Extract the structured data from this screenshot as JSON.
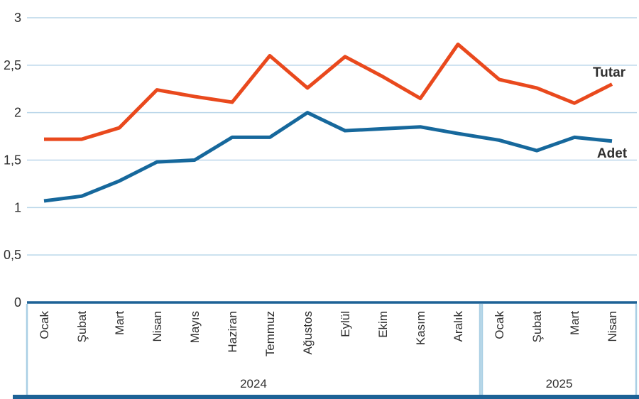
{
  "chart_data": {
    "type": "line",
    "title": "",
    "xlabel": "",
    "ylabel": "",
    "ylim": [
      0,
      3
    ],
    "grid": true,
    "legend_position": "inline-right-of-lines",
    "decimal_separator": ",",
    "categories": [
      "Ocak",
      "Şubat",
      "Mart",
      "Nisan",
      "Mayıs",
      "Haziran",
      "Temmuz",
      "Ağustos",
      "Eylül",
      "Ekim",
      "Kasım",
      "Aralık",
      "Ocak",
      "Şubat",
      "Mart",
      "Nisan"
    ],
    "x_groups": [
      {
        "label": "2024",
        "count": 12
      },
      {
        "label": "2025",
        "count": 4
      }
    ],
    "y_ticks": [
      {
        "value": 0,
        "label": "0"
      },
      {
        "value": 0.5,
        "label": "0,5"
      },
      {
        "value": 1,
        "label": "1"
      },
      {
        "value": 1.5,
        "label": "1,5"
      },
      {
        "value": 2,
        "label": "2"
      },
      {
        "value": 2.5,
        "label": "2,5"
      },
      {
        "value": 3,
        "label": "3"
      }
    ],
    "series": [
      {
        "name": "Tutar",
        "color": "#e9491d",
        "values": [
          1.72,
          1.72,
          1.84,
          2.24,
          2.17,
          2.11,
          2.6,
          2.26,
          2.59,
          2.38,
          2.15,
          2.72,
          2.35,
          2.26,
          2.1,
          2.3
        ]
      },
      {
        "name": "Adet",
        "color": "#16689c",
        "values": [
          1.07,
          1.12,
          1.28,
          1.48,
          1.5,
          1.74,
          1.74,
          2.0,
          1.81,
          1.83,
          1.85,
          1.78,
          1.71,
          1.6,
          1.74,
          1.7
        ]
      }
    ]
  },
  "colors": {
    "background": "#ffffff",
    "gridline": "#b9d6e9",
    "axis_line": "#1d6296",
    "box_border": "#a9cfe4",
    "bottom_bar": "#1d6296",
    "tick_text": "#2f2f2f"
  }
}
